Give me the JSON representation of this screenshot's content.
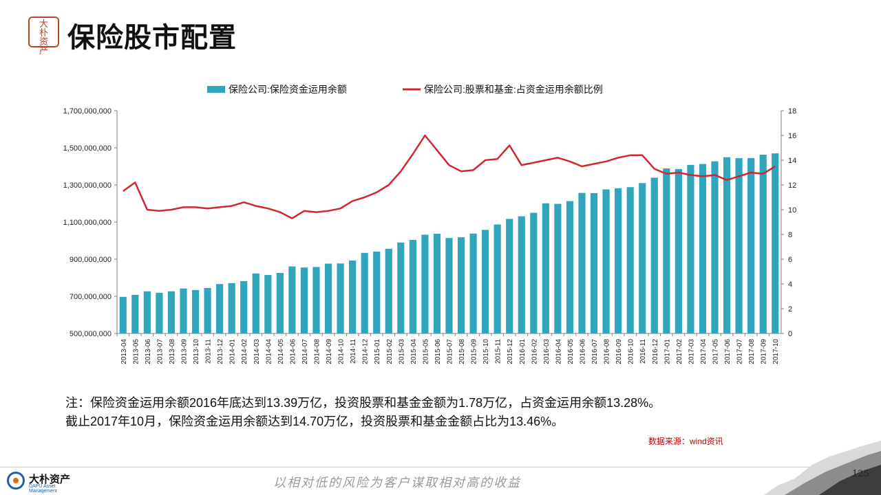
{
  "header": {
    "title": "保险股市配置",
    "seal_text": "大朴资产"
  },
  "chart_data": {
    "type": "bar",
    "legend_position": "top",
    "grid": false,
    "series": [
      {
        "name": "保险公司:保险资金运用余额",
        "type": "bar",
        "axis": "left",
        "color": "#2fa6bd"
      },
      {
        "name": "保险公司:股票和基金:占资金运用余额比例",
        "type": "line",
        "axis": "right",
        "color": "#d12631"
      }
    ],
    "categories": [
      "2013-04",
      "2013-05",
      "2013-06",
      "2013-07",
      "2013-08",
      "2013-09",
      "2013-10",
      "2013-11",
      "2013-12",
      "2014-01",
      "2014-02",
      "2014-03",
      "2014-04",
      "2014-05",
      "2014-06",
      "2014-07",
      "2014-08",
      "2014-09",
      "2014-10",
      "2014-11",
      "2014-12",
      "2015-01",
      "2015-02",
      "2015-03",
      "2015-04",
      "2015-05",
      "2015-06",
      "2015-07",
      "2015-08",
      "2015-09",
      "2015-10",
      "2015-11",
      "2015-12",
      "2016-01",
      "2016-02",
      "2016-03",
      "2016-04",
      "2016-05",
      "2016-06",
      "2016-07",
      "2016-08",
      "2016-09",
      "2016-10",
      "2016-11",
      "2016-12",
      "2017-01",
      "2017-02",
      "2017-03",
      "2017-04",
      "2017-05",
      "2017-06",
      "2017-07",
      "2017-08",
      "2017-09",
      "2017-10"
    ],
    "bar_values": [
      697000000,
      708000000,
      727000000,
      719000000,
      727000000,
      742000000,
      734000000,
      745000000,
      766000000,
      771000000,
      782000000,
      823000000,
      815000000,
      826000000,
      861000000,
      855000000,
      858000000,
      876000000,
      877000000,
      893000000,
      934000000,
      941000000,
      956000000,
      990000000,
      1004000000,
      1032000000,
      1037000000,
      1014000000,
      1018000000,
      1038000000,
      1058000000,
      1087000000,
      1117000000,
      1131000000,
      1150000000,
      1201000000,
      1198000000,
      1213000000,
      1257000000,
      1256000000,
      1276000000,
      1282000000,
      1288000000,
      1310000000,
      1339000000,
      1389000000,
      1386000000,
      1408000000,
      1413000000,
      1427000000,
      1449000000,
      1444000000,
      1445000000,
      1463000000,
      1470000000
    ],
    "line_values": [
      11.5,
      12.2,
      10.0,
      9.9,
      10.0,
      10.2,
      10.2,
      10.1,
      10.2,
      10.3,
      10.6,
      10.3,
      10.1,
      9.8,
      9.3,
      9.9,
      9.8,
      9.9,
      10.1,
      10.7,
      11.0,
      11.4,
      12.0,
      13.1,
      14.5,
      16.0,
      14.8,
      13.6,
      13.1,
      13.2,
      14.0,
      14.1,
      15.2,
      13.6,
      13.8,
      14.0,
      14.2,
      13.9,
      13.5,
      13.7,
      13.9,
      14.2,
      14.4,
      14.4,
      13.3,
      12.9,
      13.0,
      12.8,
      12.7,
      12.8,
      12.4,
      12.7,
      13.0,
      12.9,
      13.5
    ],
    "y_left": {
      "min": 500000000,
      "max": 1700000000,
      "ticks": [
        500000000,
        700000000,
        900000000,
        1100000000,
        1300000000,
        1500000000,
        1700000000
      ],
      "tick_labels": [
        "500,000,000",
        "700,000,000",
        "900,000,000",
        "1,100,000,000",
        "1,300,000,000",
        "1,500,000,000",
        "1,700,000,000"
      ]
    },
    "y_right": {
      "min": 0,
      "max": 18,
      "ticks": [
        0,
        2,
        4,
        6,
        8,
        10,
        12,
        14,
        16,
        18
      ],
      "tick_labels": [
        "0",
        "2",
        "4",
        "6",
        "8",
        "10",
        "12",
        "14",
        "16",
        "18"
      ]
    }
  },
  "note": {
    "line1": "注：保险资金运用余额2016年底达到13.39万亿，投资股票和基金金额为1.78万亿，占资金运用余额13.28%。",
    "line2": "截止2017年10月，保险资金运用余额达到14.70万亿，投资股票和基金金额占比为13.46%。"
  },
  "source": "数据来源：wind资讯",
  "footer": {
    "logo_name": "大朴资产",
    "logo_en": "DAPU Asset Management",
    "slogan": "以相对低的风险为客户谋取相对高的收益",
    "page_number": "125"
  },
  "colors": {
    "bar": "#2fa6bd",
    "line": "#d12631",
    "source": "#c00000",
    "seal": "#b5472b"
  }
}
